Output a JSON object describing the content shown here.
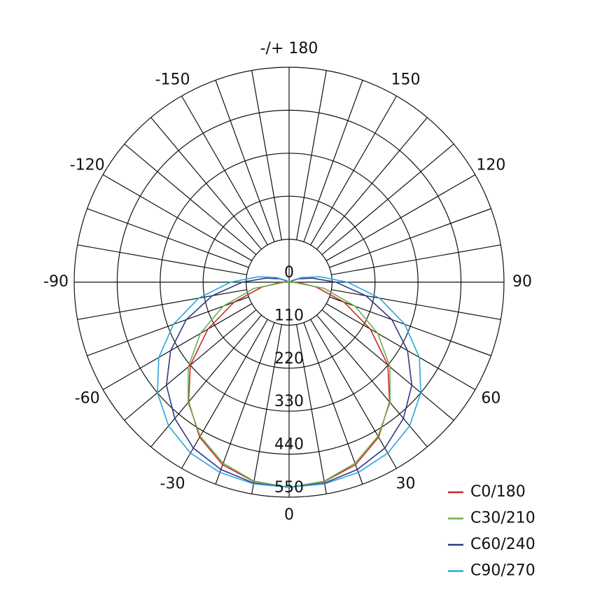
{
  "chart_data": {
    "type": "polar",
    "angle_ticks": [
      {
        "value": 180,
        "label": "-/+ 180"
      },
      -150,
      -120,
      -90,
      -60,
      -30,
      0,
      30,
      60,
      90,
      120,
      150
    ],
    "rlim": [
      0,
      550
    ],
    "rticks": [
      0,
      110,
      220,
      330,
      440,
      550
    ],
    "x": [
      -120,
      -110,
      -100,
      -90,
      -80,
      -70,
      -60,
      -50,
      -40,
      -30,
      -20,
      -10,
      0,
      10,
      20,
      30,
      40,
      50,
      60,
      70,
      80,
      90,
      100,
      110,
      120
    ],
    "series": [
      {
        "name": "C0/180",
        "color": "#c8282d",
        "values": [
          0,
          0,
          5,
          20,
          70,
          150,
          240,
          330,
          400,
          458,
          497,
          518,
          525,
          518,
          497,
          458,
          400,
          330,
          240,
          150,
          70,
          20,
          5,
          0,
          0
        ]
      },
      {
        "name": "C30/210",
        "color": "#6ab04c",
        "values": [
          0,
          0,
          0,
          10,
          91,
          180,
          262,
          337,
          402,
          455,
          493,
          517,
          525,
          517,
          493,
          455,
          402,
          337,
          262,
          180,
          91,
          10,
          0,
          0,
          0
        ]
      },
      {
        "name": "C60/240",
        "color": "#2b3a86",
        "values": [
          5,
          25,
          60,
          120,
          200,
          280,
          350,
          410,
          455,
          490,
          510,
          522,
          525,
          522,
          510,
          490,
          455,
          410,
          350,
          280,
          200,
          120,
          60,
          25,
          5
        ]
      },
      {
        "name": "C90/270",
        "color": "#2aa6d9",
        "values": [
          10,
          35,
          80,
          150,
          235,
          315,
          385,
          440,
          480,
          505,
          518,
          524,
          525,
          524,
          518,
          505,
          480,
          440,
          385,
          315,
          235,
          150,
          80,
          35,
          10
        ]
      }
    ]
  }
}
